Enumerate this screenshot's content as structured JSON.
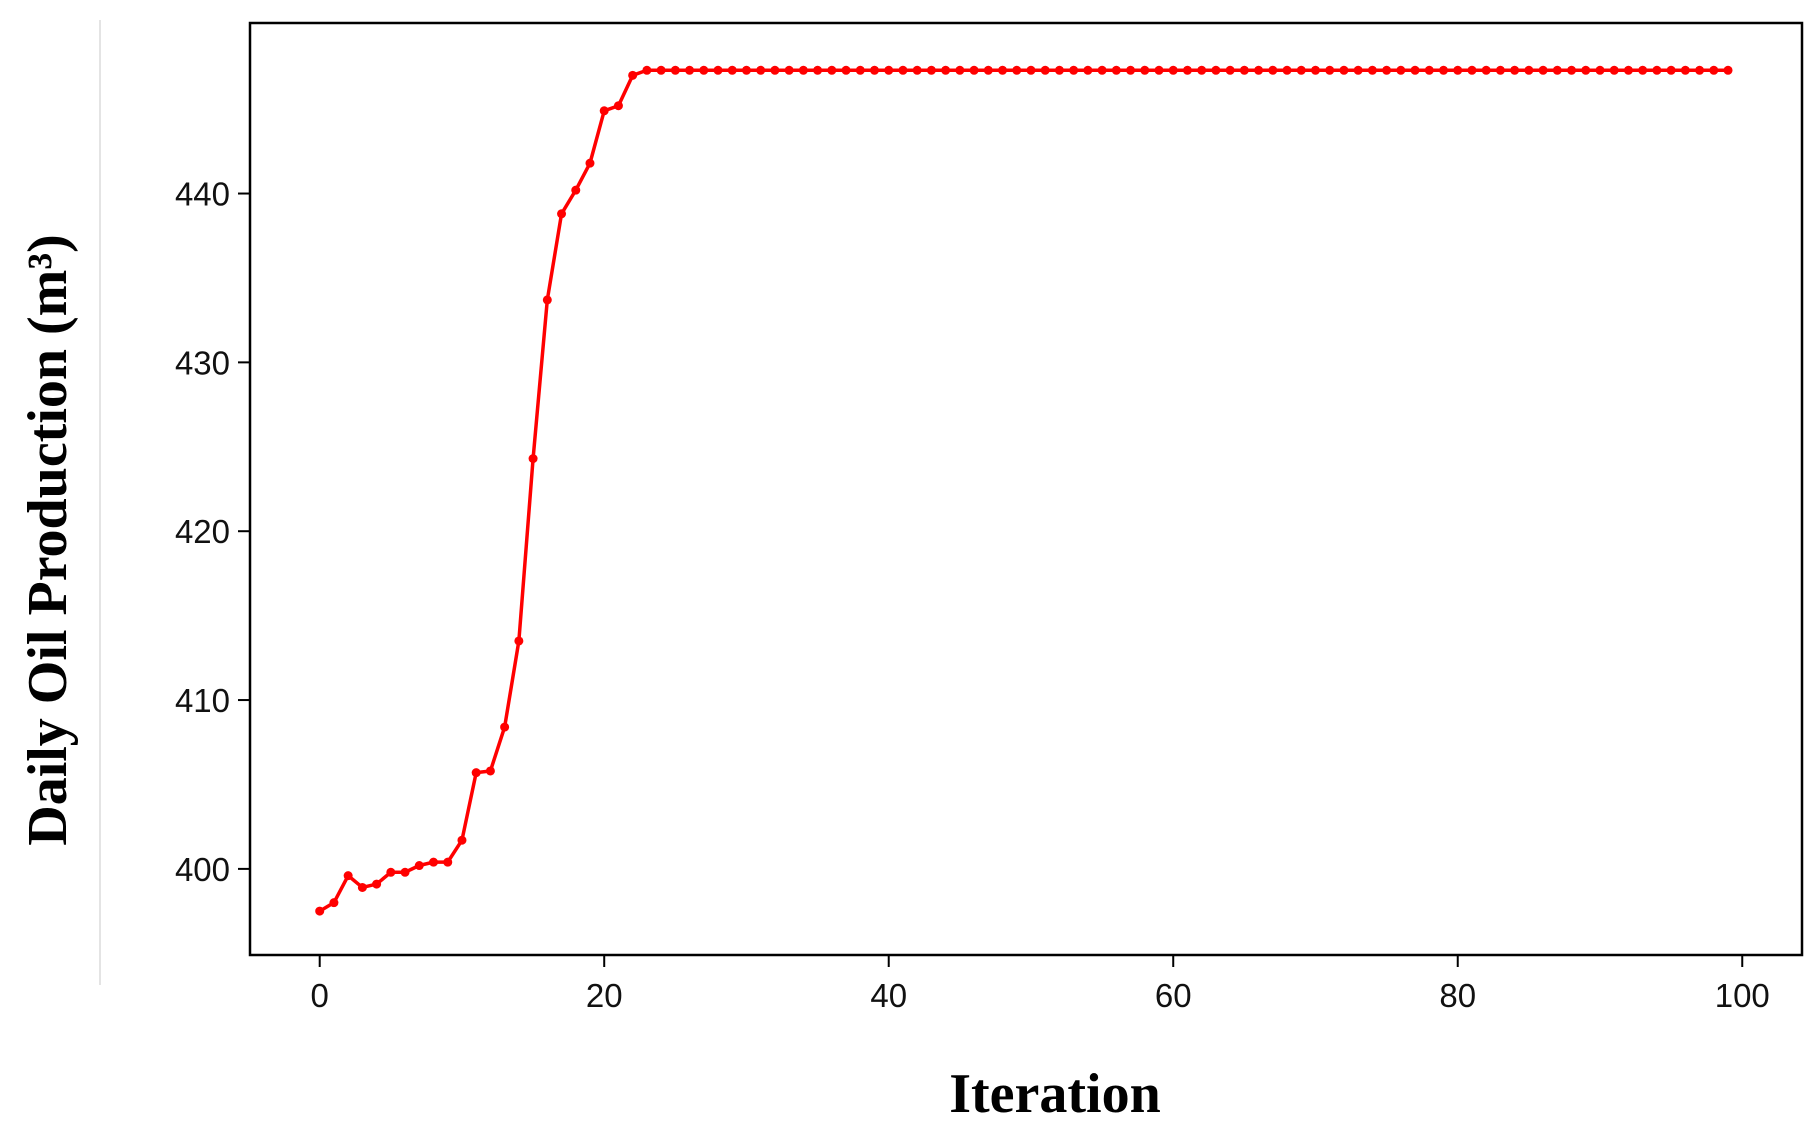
{
  "chart_data": {
    "type": "line",
    "x_label": "Iteration",
    "y_label": "Daily Oil Production (m³)",
    "x": [
      0,
      1,
      2,
      3,
      4,
      5,
      6,
      7,
      8,
      9,
      10,
      11,
      12,
      13,
      14,
      15,
      16,
      17,
      18,
      19,
      20,
      21,
      22,
      23,
      24,
      25,
      26,
      27,
      28,
      29,
      30,
      31,
      32,
      33,
      34,
      35,
      36,
      37,
      38,
      39,
      40,
      41,
      42,
      43,
      44,
      45,
      46,
      47,
      48,
      49,
      50,
      51,
      52,
      53,
      54,
      55,
      56,
      57,
      58,
      59,
      60,
      61,
      62,
      63,
      64,
      65,
      66,
      67,
      68,
      69,
      70,
      71,
      72,
      73,
      74,
      75,
      76,
      77,
      78,
      79,
      80,
      81,
      82,
      83,
      84,
      85,
      86,
      87,
      88,
      89,
      90,
      91,
      92,
      93,
      94,
      95,
      96,
      97,
      98,
      99
    ],
    "series": [
      {
        "color": "#ff0000",
        "values": [
          397.5,
          398.0,
          399.6,
          398.9,
          399.1,
          399.8,
          399.8,
          400.2,
          400.4,
          400.4,
          401.7,
          405.7,
          405.8,
          408.4,
          413.5,
          424.3,
          433.7,
          438.8,
          440.2,
          441.8,
          444.9,
          445.2,
          447.0,
          447.3,
          447.3,
          447.3,
          447.3,
          447.3,
          447.3,
          447.3,
          447.3,
          447.3,
          447.3,
          447.3,
          447.3,
          447.3,
          447.3,
          447.3,
          447.3,
          447.3,
          447.3,
          447.3,
          447.3,
          447.3,
          447.3,
          447.3,
          447.3,
          447.3,
          447.3,
          447.3,
          447.3,
          447.3,
          447.3,
          447.3,
          447.3,
          447.3,
          447.3,
          447.3,
          447.3,
          447.3,
          447.3,
          447.3,
          447.3,
          447.3,
          447.3,
          447.3,
          447.3,
          447.3,
          447.3,
          447.3,
          447.3,
          447.3,
          447.3,
          447.3,
          447.3,
          447.3,
          447.3,
          447.3,
          447.3,
          447.3,
          447.3,
          447.3,
          447.3,
          447.3,
          447.3,
          447.3,
          447.3,
          447.3,
          447.3,
          447.3,
          447.3,
          447.3,
          447.3,
          447.3,
          447.3,
          447.3,
          447.3,
          447.3,
          447.3,
          447.3
        ]
      }
    ],
    "xlim": [
      -4.9,
      104.2
    ],
    "xticks": [
      0,
      20,
      40,
      60,
      80,
      100
    ],
    "ylim": [
      394.9,
      450.1
    ],
    "yticks": [
      400,
      410,
      420,
      430,
      440
    ],
    "grid": false
  }
}
